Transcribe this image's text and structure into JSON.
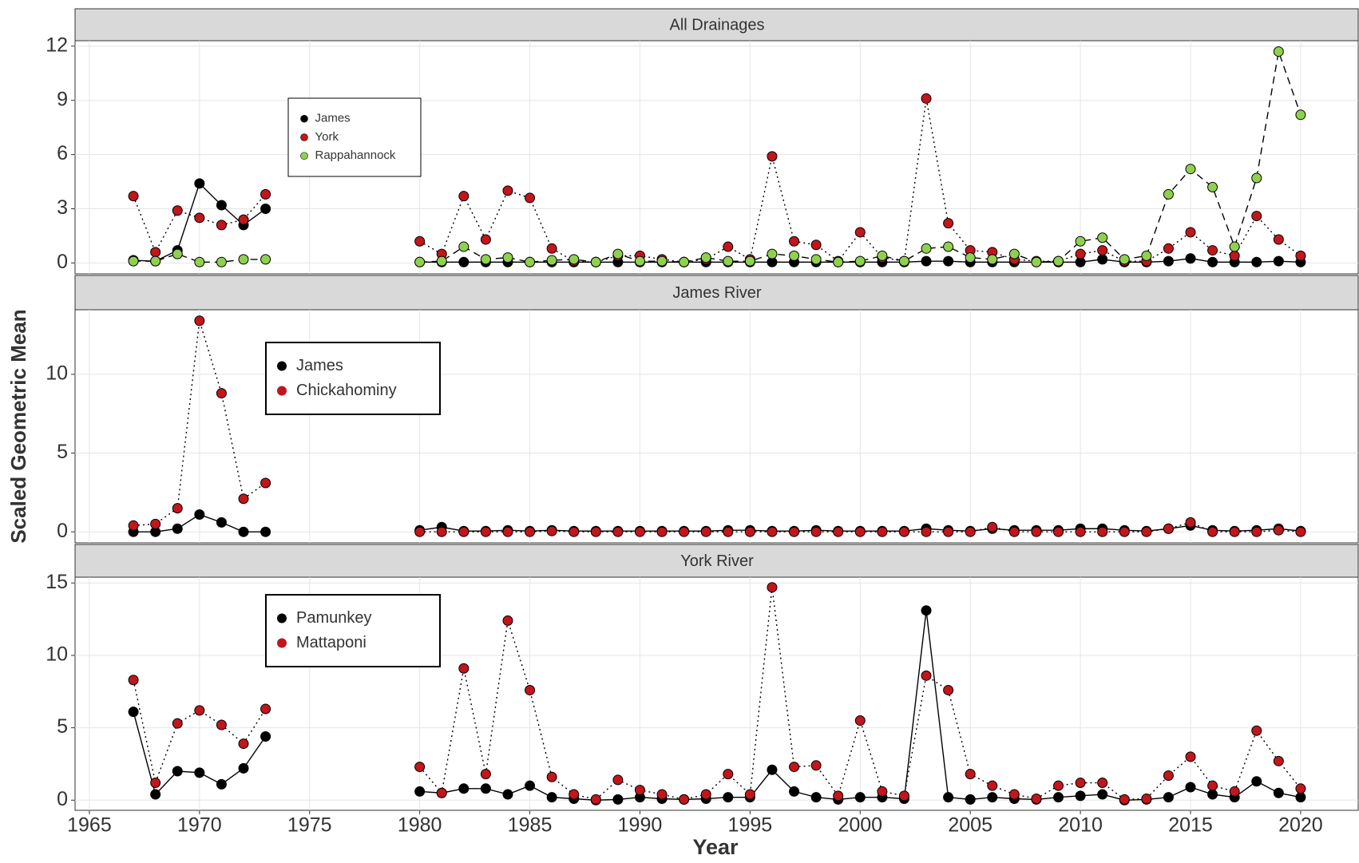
{
  "chart_data": [
    {
      "type": "line",
      "title": "All Drainages",
      "x": [
        1967,
        1968,
        1969,
        1970,
        1971,
        1972,
        1973,
        1974,
        1975,
        1976,
        1977,
        1978,
        1979,
        1980,
        1981,
        1982,
        1983,
        1984,
        1985,
        1986,
        1987,
        1988,
        1989,
        1990,
        1991,
        1992,
        1993,
        1994,
        1995,
        1996,
        1997,
        1998,
        1999,
        2000,
        2001,
        2002,
        2003,
        2004,
        2005,
        2006,
        2007,
        2008,
        2009,
        2010,
        2011,
        2012,
        2013,
        2014,
        2015,
        2016,
        2017,
        2018,
        2019,
        2020
      ],
      "xlim": [
        1964.35,
        2022.65
      ],
      "xticks": [
        1965,
        1970,
        1975,
        1980,
        1985,
        1990,
        1995,
        2000,
        2005,
        2010,
        2015,
        2020
      ],
      "ylim": [
        -0.6,
        12.3
      ],
      "yticks": [
        0,
        3,
        6,
        9,
        12
      ],
      "grid": true,
      "series": [
        {
          "name": "James",
          "color": "#000000",
          "linestyle": "solid",
          "values": [
            0.15,
            0.1,
            0.7,
            4.4,
            3.2,
            2.1,
            3.0,
            null,
            null,
            null,
            null,
            null,
            null,
            0.05,
            0.05,
            0.05,
            0.05,
            0.05,
            0.05,
            0.05,
            0.05,
            0.05,
            0.05,
            0.05,
            0.05,
            0.05,
            0.05,
            0.05,
            0.05,
            0.05,
            0.05,
            0.05,
            0.05,
            0.05,
            0.05,
            0.05,
            0.1,
            0.1,
            0.05,
            0.05,
            0.05,
            0.05,
            0.05,
            0.05,
            0.2,
            0.05,
            0.05,
            0.1,
            0.25,
            0.05,
            0.05,
            0.05,
            0.1,
            0.05
          ]
        },
        {
          "name": "York",
          "color": "#c0161c",
          "linestyle": "dotted",
          "values": [
            3.7,
            0.6,
            2.9,
            2.5,
            2.1,
            2.4,
            3.8,
            null,
            null,
            null,
            null,
            null,
            null,
            1.2,
            0.5,
            3.7,
            1.3,
            4.0,
            3.6,
            0.8,
            0.1,
            0.05,
            0.4,
            0.4,
            0.2,
            0.05,
            0.2,
            0.9,
            0.2,
            5.9,
            1.2,
            1.0,
            0.1,
            1.7,
            0.3,
            0.1,
            9.1,
            2.2,
            0.7,
            0.6,
            0.2,
            0.1,
            0.1,
            0.5,
            0.7,
            0.1,
            0.1,
            0.8,
            1.7,
            0.7,
            0.4,
            2.6,
            1.3,
            0.4
          ]
        },
        {
          "name": "Rappahannock",
          "color": "#8fd14f",
          "linestyle": "dashed",
          "values": [
            0.1,
            0.1,
            0.5,
            0.05,
            0.05,
            0.2,
            0.2,
            null,
            null,
            null,
            null,
            null,
            null,
            0.05,
            0.1,
            0.9,
            0.2,
            0.3,
            0.05,
            0.15,
            0.2,
            0.05,
            0.5,
            0.1,
            0.1,
            0.05,
            0.3,
            0.1,
            0.1,
            0.5,
            0.4,
            0.2,
            0.05,
            0.1,
            0.4,
            0.1,
            0.8,
            0.9,
            0.3,
            0.2,
            0.5,
            0.05,
            0.1,
            1.2,
            1.4,
            0.2,
            0.4,
            3.8,
            5.2,
            4.2,
            0.9,
            4.7,
            11.7,
            8.2
          ]
        }
      ]
    },
    {
      "type": "line",
      "title": "James River",
      "ylabel": "Scaled Geometric Mean",
      "x": [
        1967,
        1968,
        1969,
        1970,
        1971,
        1972,
        1973,
        1974,
        1975,
        1976,
        1977,
        1978,
        1979,
        1980,
        1981,
        1982,
        1983,
        1984,
        1985,
        1986,
        1987,
        1988,
        1989,
        1990,
        1991,
        1992,
        1993,
        1994,
        1995,
        1996,
        1997,
        1998,
        1999,
        2000,
        2001,
        2002,
        2003,
        2004,
        2005,
        2006,
        2007,
        2008,
        2009,
        2010,
        2011,
        2012,
        2013,
        2014,
        2015,
        2016,
        2017,
        2018,
        2019,
        2020
      ],
      "xlim": [
        1964.35,
        2022.65
      ],
      "xticks": [
        1965,
        1970,
        1975,
        1980,
        1985,
        1990,
        1995,
        2000,
        2005,
        2010,
        2015,
        2020
      ],
      "ylim": [
        -0.7,
        14.1
      ],
      "yticks": [
        0,
        5,
        10
      ],
      "grid": true,
      "series": [
        {
          "name": "James",
          "color": "#000000",
          "linestyle": "solid",
          "values": [
            0,
            0,
            0.2,
            1.1,
            0.6,
            0,
            0,
            null,
            null,
            null,
            null,
            null,
            null,
            0.1,
            0.3,
            0.05,
            0.05,
            0.1,
            0.05,
            0.1,
            0.05,
            0.05,
            0.05,
            0.05,
            0.05,
            0.05,
            0.05,
            0.1,
            0.1,
            0.05,
            0.05,
            0.1,
            0.05,
            0.05,
            0.05,
            0.05,
            0.2,
            0.1,
            0.05,
            0.2,
            0.1,
            0.1,
            0.1,
            0.2,
            0.2,
            0.1,
            0.05,
            0.2,
            0.4,
            0.1,
            0.05,
            0.1,
            0.2,
            0.05
          ]
        },
        {
          "name": "Chickahominy",
          "color": "#c0161c",
          "linestyle": "dotted",
          "values": [
            0.4,
            0.5,
            1.5,
            13.4,
            8.8,
            2.1,
            3.1,
            null,
            null,
            null,
            null,
            null,
            null,
            0,
            0,
            0,
            0,
            0,
            0,
            0.05,
            0,
            0,
            0,
            0,
            0,
            0,
            0,
            0,
            0,
            0,
            0,
            0,
            0,
            0,
            0,
            0,
            0,
            0,
            0,
            0.3,
            0,
            0,
            0,
            0,
            0,
            0,
            0,
            0.2,
            0.6,
            0,
            0,
            0,
            0.1,
            0
          ]
        }
      ]
    },
    {
      "type": "line",
      "title": "York River",
      "xlabel": "Year",
      "x": [
        1967,
        1968,
        1969,
        1970,
        1971,
        1972,
        1973,
        1974,
        1975,
        1976,
        1977,
        1978,
        1979,
        1980,
        1981,
        1982,
        1983,
        1984,
        1985,
        1986,
        1987,
        1988,
        1989,
        1990,
        1991,
        1992,
        1993,
        1994,
        1995,
        1996,
        1997,
        1998,
        1999,
        2000,
        2001,
        2002,
        2003,
        2004,
        2005,
        2006,
        2007,
        2008,
        2009,
        2010,
        2011,
        2012,
        2013,
        2014,
        2015,
        2016,
        2017,
        2018,
        2019,
        2020
      ],
      "xlim": [
        1964.35,
        2022.65
      ],
      "xticks": [
        1965,
        1970,
        1975,
        1980,
        1985,
        1990,
        1995,
        2000,
        2005,
        2010,
        2015,
        2020
      ],
      "ylim": [
        -0.7,
        15.4
      ],
      "yticks": [
        0,
        5,
        10,
        15
      ],
      "grid": true,
      "series": [
        {
          "name": "Pamunkey",
          "color": "#000000",
          "linestyle": "solid",
          "values": [
            6.1,
            0.4,
            2.0,
            1.9,
            1.1,
            2.2,
            4.4,
            null,
            null,
            null,
            null,
            null,
            null,
            0.6,
            0.5,
            0.8,
            0.8,
            0.4,
            1.0,
            0.2,
            0.1,
            0,
            0.05,
            0.2,
            0.1,
            0.05,
            0.1,
            0.2,
            0.2,
            2.1,
            0.6,
            0.2,
            0.05,
            0.2,
            0.2,
            0.1,
            13.1,
            0.2,
            0.05,
            0.2,
            0.1,
            0.05,
            0.2,
            0.3,
            0.4,
            0,
            0.05,
            0.2,
            0.9,
            0.4,
            0.2,
            1.3,
            0.5,
            0.2
          ]
        },
        {
          "name": "Mattaponi",
          "color": "#c0161c",
          "linestyle": "dotted",
          "values": [
            8.3,
            1.2,
            5.3,
            6.2,
            5.2,
            3.9,
            6.3,
            null,
            null,
            null,
            null,
            null,
            null,
            2.3,
            0.5,
            9.1,
            1.8,
            12.4,
            7.6,
            1.6,
            0.4,
            0.05,
            1.4,
            0.7,
            0.4,
            0.05,
            0.4,
            1.8,
            0.4,
            14.7,
            2.3,
            2.4,
            0.3,
            5.5,
            0.6,
            0.3,
            8.6,
            7.6,
            1.8,
            1.0,
            0.4,
            0.1,
            1.0,
            1.2,
            1.2,
            0.05,
            0.1,
            1.7,
            3.0,
            1.0,
            0.6,
            4.8,
            2.7,
            0.8
          ]
        }
      ]
    }
  ]
}
